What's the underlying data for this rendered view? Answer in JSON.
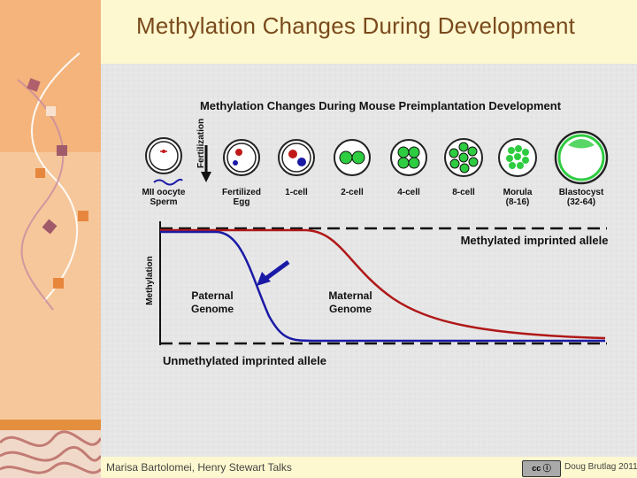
{
  "slide": {
    "title": "Methylation Changes During Development",
    "footer_left": "Marisa Bartolomei, Henry Stewart Talks",
    "footer_right": "Doug Brutlag 2011",
    "license_badge": "cc ⓘ"
  },
  "figure": {
    "title": "Methylation Changes During Mouse Preimplantation Development",
    "fertilization_label": "Fertilization",
    "stages": [
      {
        "label": "MII oocyte\nSperm"
      },
      {
        "label": "Fertilized\nEgg"
      },
      {
        "label": "1-cell"
      },
      {
        "label": "2-cell"
      },
      {
        "label": "4-cell"
      },
      {
        "label": "8-cell"
      },
      {
        "label": "Morula\n(8-16)"
      },
      {
        "label": "Blastocyst\n(32-64)"
      }
    ],
    "y_axis_label": "Methylation",
    "methylated_label": "Methylated imprinted allele",
    "unmethylated_label": "Unmethylated imprinted allele",
    "paternal_label": "Paternal\nGenome",
    "maternal_label": "Maternal\nGenome",
    "colors": {
      "paternal": "#1a1aa6",
      "maternal": "#b01818",
      "cell_green": "#2ecc40",
      "accent_title": "#7a4a1d"
    }
  }
}
